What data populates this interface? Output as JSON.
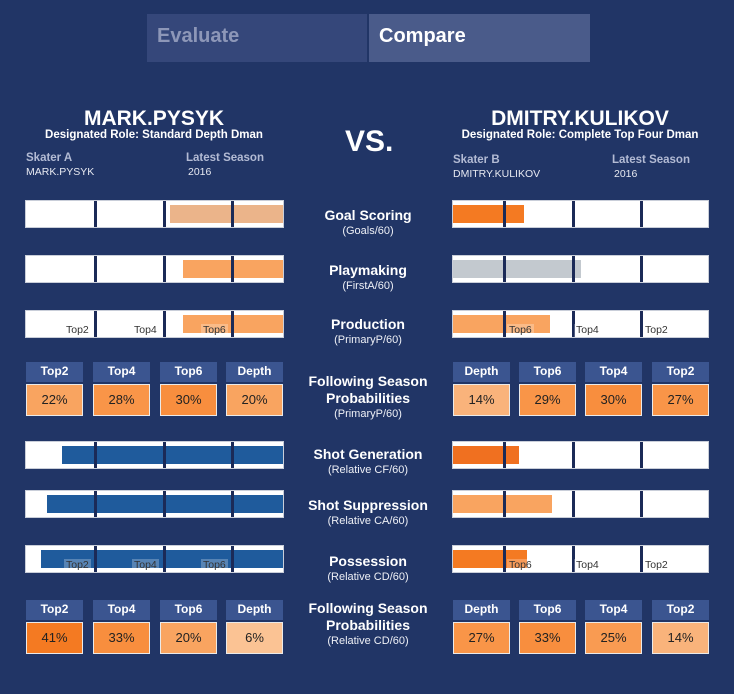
{
  "tabs": {
    "evaluate": "Evaluate",
    "compare": "Compare"
  },
  "vs": "VS.",
  "skater_a": {
    "name": "MARK.PYSYK",
    "role": "Designated Role: Standard Depth Dman",
    "skater_label": "Skater A",
    "skater_value": "MARK.PYSYK",
    "season_label": "Latest Season",
    "season_value": "2016"
  },
  "skater_b": {
    "name": "DMITRY.KULIKOV",
    "role": "Designated Role: Complete Top Four Dman",
    "skater_label": "Skater B",
    "skater_value": "DMITRY.KULIKOV",
    "season_label": "Latest Season",
    "season_value": "2016"
  },
  "metrics": [
    {
      "title": "Goal Scoring",
      "sub": "(Goals/60)"
    },
    {
      "title": "Playmaking",
      "sub": "(FirstA/60)"
    },
    {
      "title": "Production",
      "sub": "(PrimaryP/60)"
    },
    {
      "title": "Following Season Probabilities",
      "sub": "(PrimaryP/60)"
    },
    {
      "title": "Shot Generation",
      "sub": "(Relative CF/60)"
    },
    {
      "title": "Shot Suppression",
      "sub": "(Relative CA/60)"
    },
    {
      "title": "Possession",
      "sub": "(Relative CD/60)"
    },
    {
      "title": "Following Season Probabilities",
      "sub": "(Relative CD/60)"
    }
  ],
  "tier_labels_a": [
    "Top2",
    "Top4",
    "Top6"
  ],
  "tier_labels_b": [
    "Top6",
    "Top4",
    "Top2"
  ],
  "bars_a": [
    {
      "from": 0.56,
      "to": 1.0,
      "color": "#ebb48a"
    },
    {
      "from": 0.61,
      "to": 1.0,
      "color": "#f9a460"
    },
    {
      "from": 0.61,
      "to": 1.0,
      "color": "#f9a460",
      "labels": true
    },
    {
      "from": 0.14,
      "to": 1.0,
      "color": "#1f5b9c"
    },
    {
      "from": 0.08,
      "to": 1.0,
      "color": "#1f5b9c"
    },
    {
      "from": 0.06,
      "to": 1.0,
      "color": "#1f5b9c",
      "labels": true
    }
  ],
  "bars_b": [
    {
      "from": 0.0,
      "to": 0.28,
      "color": "#f47a22"
    },
    {
      "from": 0.0,
      "to": 0.5,
      "color": "#c3c9cf"
    },
    {
      "from": 0.0,
      "to": 0.38,
      "color": "#f9a460",
      "labels": true
    },
    {
      "from": 0.0,
      "to": 0.26,
      "color": "#f07020"
    },
    {
      "from": 0.0,
      "to": 0.39,
      "color": "#f9a460"
    },
    {
      "from": 0.0,
      "to": 0.29,
      "color": "#f47a22",
      "labels": true
    }
  ],
  "prob_production_a": {
    "headers": [
      "Top2",
      "Top4",
      "Top6",
      "Depth"
    ],
    "values": [
      "22%",
      "28%",
      "30%",
      "20%"
    ],
    "colors": [
      "#f9a460",
      "#f99548",
      "#f88e3e",
      "#f9a460"
    ]
  },
  "prob_production_b": {
    "headers": [
      "Depth",
      "Top6",
      "Top4",
      "Top2"
    ],
    "values": [
      "14%",
      "29%",
      "30%",
      "27%"
    ],
    "colors": [
      "#f9b37b",
      "#f99548",
      "#f88e3e",
      "#f99548"
    ]
  },
  "prob_possession_a": {
    "headers": [
      "Top2",
      "Top4",
      "Top6",
      "Depth"
    ],
    "values": [
      "41%",
      "33%",
      "20%",
      "6%"
    ],
    "colors": [
      "#f47a22",
      "#f88e3e",
      "#f9a460",
      "#fbc394"
    ]
  },
  "prob_possession_b": {
    "headers": [
      "Depth",
      "Top6",
      "Top4",
      "Top2"
    ],
    "values": [
      "27%",
      "33%",
      "25%",
      "14%"
    ],
    "colors": [
      "#f99548",
      "#f88e3e",
      "#f99b52",
      "#f9b37b"
    ]
  }
}
